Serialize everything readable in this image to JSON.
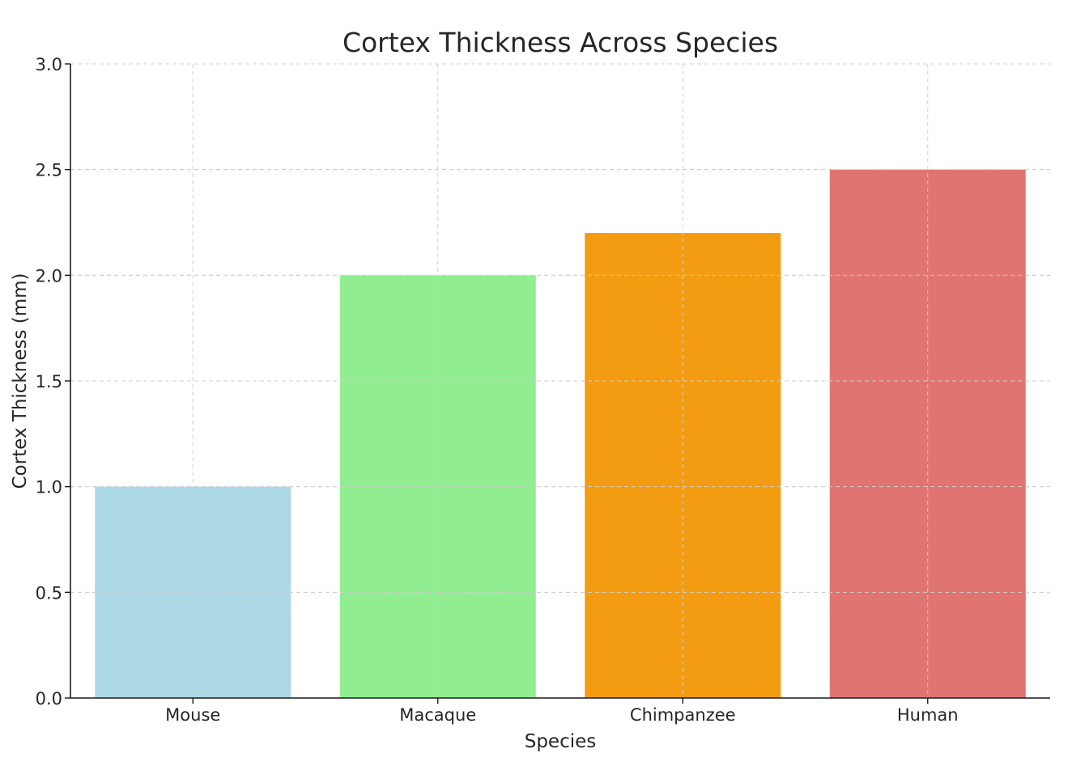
{
  "chart_data": {
    "type": "bar",
    "title": "Cortex Thickness Across Species",
    "xlabel": "Species",
    "ylabel": "Cortex Thickness (mm)",
    "categories": [
      "Mouse",
      "Macaque",
      "Chimpanzee",
      "Human"
    ],
    "values": [
      1.0,
      2.0,
      2.2,
      2.5
    ],
    "colors": [
      "#add8e6",
      "#90ee90",
      "#f39c12",
      "#e07470"
    ],
    "ylim": [
      0,
      3.0
    ],
    "yticks": [
      0.0,
      0.5,
      1.0,
      1.5,
      2.0,
      2.5,
      3.0
    ],
    "ytick_labels": [
      "0.0",
      "0.5",
      "1.0",
      "1.5",
      "2.0",
      "2.5",
      "3.0"
    ],
    "grid": true,
    "legend": "none"
  }
}
